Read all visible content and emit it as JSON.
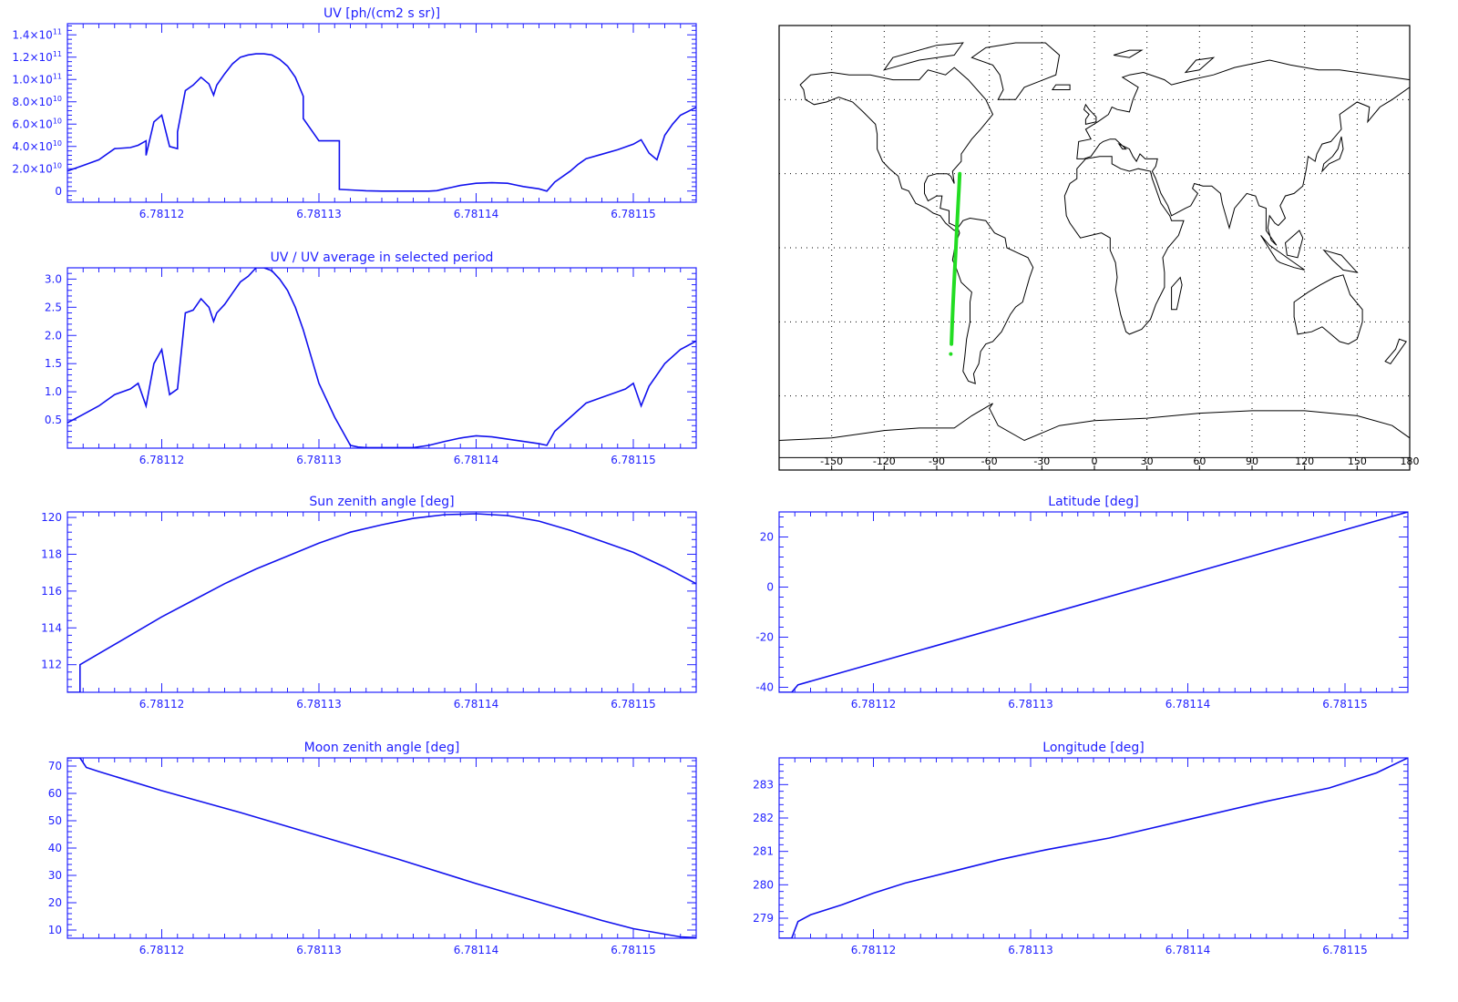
{
  "colors": {
    "axis": "#2222ff",
    "line": "#1111ee",
    "track": "#22dd22",
    "map": "#000000",
    "background": "#ffffff"
  },
  "chart_data": [
    {
      "id": "uv",
      "type": "line",
      "title": "UV [ph/(cm2 s sr)]",
      "xlim": [
        6.781114,
        6.781154
      ],
      "ylim": [
        -10000000000.0,
        150000000000.0
      ],
      "x_tick_labels": [
        "6.78112",
        "6.78113",
        "6.78114",
        "6.78115"
      ],
      "x_ticks": [
        6.78112,
        6.78113,
        6.78114,
        6.78115
      ],
      "y_ticks": [
        0,
        20000000000.0,
        40000000000.0,
        60000000000.0,
        80000000000.0,
        100000000000.0,
        120000000000.0,
        140000000000.0
      ],
      "y_tick_labels": [
        {
          "mant": "0",
          "exp": ""
        },
        {
          "mant": "2.0×10",
          "exp": "10"
        },
        {
          "mant": "4.0×10",
          "exp": "10"
        },
        {
          "mant": "6.0×10",
          "exp": "10"
        },
        {
          "mant": "8.0×10",
          "exp": "10"
        },
        {
          "mant": "1.0×10",
          "exp": "11"
        },
        {
          "mant": "1.2×10",
          "exp": "11"
        },
        {
          "mant": "1.4×10",
          "exp": "11"
        }
      ],
      "x": [
        6.781114,
        6.781115,
        6.781116,
        6.781117,
        6.781118,
        6.7811185,
        6.781119,
        6.781119,
        6.7811195,
        6.78112,
        6.7811205,
        6.781121,
        6.781121,
        6.7811215,
        6.781122,
        6.7811225,
        6.781123,
        6.7811233,
        6.7811235,
        6.781124,
        6.7811245,
        6.781125,
        6.7811255,
        6.781126,
        6.7811265,
        6.781127,
        6.7811275,
        6.781128,
        6.7811285,
        6.781129,
        6.781129,
        6.78113,
        6.7811305,
        6.7811313,
        6.7811313,
        6.781132,
        6.781133,
        6.781134,
        6.781135,
        6.781136,
        6.781137,
        6.7811375,
        6.781138,
        6.7811385,
        6.781139,
        6.78114,
        6.781141,
        6.781142,
        6.7811425,
        6.781143,
        6.7811435,
        6.781144,
        6.7811445,
        6.781145,
        6.781146,
        6.7811465,
        6.781147,
        6.781148,
        6.781149,
        6.78115,
        6.7811505,
        6.781151,
        6.7811515,
        6.781152,
        6.7811525,
        6.781153,
        6.781154
      ],
      "y": [
        18000000000.0,
        23000000000.0,
        28000000000.0,
        38000000000.0,
        39000000000.0,
        41000000000.0,
        45000000000.0,
        32000000000.0,
        62000000000.0,
        68000000000.0,
        40000000000.0,
        38000000000.0,
        53000000000.0,
        90000000000.0,
        95000000000.0,
        102000000000.0,
        96000000000.0,
        86000000000.0,
        95000000000.0,
        105000000000.0,
        114000000000.0,
        120000000000.0,
        122000000000.0,
        123000000000.0,
        123000000000.0,
        122000000000.0,
        118000000000.0,
        112000000000.0,
        102000000000.0,
        85000000000.0,
        65000000000.0,
        45000000000.0,
        45000000000.0,
        45000000000.0,
        1500000000.0,
        1000000000.0,
        300000000.0,
        0,
        0,
        0,
        0,
        400000000.0,
        2000000000.0,
        3500000000.0,
        5000000000.0,
        7000000000.0,
        7500000000.0,
        7000000000.0,
        5500000000.0,
        4000000000.0,
        3000000000.0,
        2000000000.0,
        0,
        8000000000.0,
        18000000000.0,
        24000000000.0,
        29000000000.0,
        33000000000.0,
        37000000000.0,
        42000000000.0,
        46000000000.0,
        34000000000.0,
        28000000000.0,
        50000000000.0,
        60000000000.0,
        68000000000.0,
        75000000000.0
      ]
    },
    {
      "id": "uvratio",
      "type": "line",
      "title": "UV / UV average in selected period",
      "xlim": [
        6.781114,
        6.781154
      ],
      "ylim": [
        0,
        3.2
      ],
      "x_tick_labels": [
        "6.78112",
        "6.78113",
        "6.78114",
        "6.78115"
      ],
      "x_ticks": [
        6.78112,
        6.78113,
        6.78114,
        6.78115
      ],
      "y_ticks": [
        0.5,
        1.0,
        1.5,
        2.0,
        2.5,
        3.0
      ],
      "y_tick_labels": [
        "0.5",
        "1.0",
        "1.5",
        "2.0",
        "2.5",
        "3.0"
      ],
      "x": [
        6.781114,
        6.781115,
        6.781116,
        6.781117,
        6.781118,
        6.7811185,
        6.781119,
        6.7811195,
        6.78112,
        6.7811205,
        6.781121,
        6.7811215,
        6.781122,
        6.7811225,
        6.781123,
        6.7811233,
        6.7811235,
        6.781124,
        6.7811245,
        6.781125,
        6.7811255,
        6.781126,
        6.7811265,
        6.781127,
        6.7811275,
        6.781128,
        6.7811285,
        6.781129,
        6.78113,
        6.781131,
        6.781132,
        6.7811325,
        6.781133,
        6.781134,
        6.781135,
        6.781136,
        6.781137,
        6.781138,
        6.781139,
        6.78114,
        6.781141,
        6.781142,
        6.781143,
        6.781144,
        6.7811445,
        6.781145,
        6.781146,
        6.781147,
        6.781148,
        6.781149,
        6.7811495,
        6.78115,
        6.7811505,
        6.781151,
        6.781152,
        6.781153,
        6.781154
      ],
      "y": [
        0.45,
        0.6,
        0.75,
        0.95,
        1.05,
        1.15,
        0.75,
        1.5,
        1.75,
        0.95,
        1.05,
        2.4,
        2.45,
        2.65,
        2.5,
        2.25,
        2.4,
        2.55,
        2.75,
        2.95,
        3.05,
        3.2,
        3.2,
        3.15,
        3.0,
        2.8,
        2.5,
        2.1,
        1.15,
        0.55,
        0.05,
        0.02,
        0.01,
        0.01,
        0.01,
        0.01,
        0.05,
        0.12,
        0.18,
        0.22,
        0.2,
        0.16,
        0.12,
        0.08,
        0.05,
        0.3,
        0.55,
        0.8,
        0.9,
        1.0,
        1.05,
        1.15,
        0.75,
        1.1,
        1.5,
        1.75,
        1.9
      ]
    },
    {
      "id": "sun",
      "type": "line",
      "title": "Sun zenith angle [deg]",
      "xlim": [
        6.781114,
        6.781154
      ],
      "ylim": [
        110.5,
        120.3
      ],
      "x_tick_labels": [
        "6.78112",
        "6.78113",
        "6.78114",
        "6.78115"
      ],
      "x_ticks": [
        6.78112,
        6.78113,
        6.78114,
        6.78115
      ],
      "y_ticks": [
        112,
        114,
        116,
        118,
        120
      ],
      "y_tick_labels": [
        "112",
        "114",
        "116",
        "118",
        "120"
      ],
      "x": [
        6.781114,
        6.7811148,
        6.7811148,
        6.781116,
        6.781118,
        6.78112,
        6.781122,
        6.781124,
        6.781126,
        6.781128,
        6.78113,
        6.781132,
        6.781134,
        6.781136,
        6.781138,
        6.78114,
        6.781142,
        6.781144,
        6.781146,
        6.781148,
        6.78115,
        6.781152,
        6.781154
      ],
      "y": [
        110.5,
        110.5,
        112.0,
        112.6,
        113.6,
        114.6,
        115.5,
        116.4,
        117.2,
        117.9,
        118.6,
        119.2,
        119.6,
        119.95,
        120.15,
        120.2,
        120.1,
        119.8,
        119.3,
        118.7,
        118.1,
        117.3,
        116.4
      ]
    },
    {
      "id": "lat",
      "type": "line",
      "title": "Latitude [deg]",
      "xlim": [
        6.781114,
        6.781154
      ],
      "ylim": [
        -42,
        30
      ],
      "x_tick_labels": [
        "6.78112",
        "6.78113",
        "6.78114",
        "6.78115"
      ],
      "x_ticks": [
        6.78112,
        6.78113,
        6.78114,
        6.78115
      ],
      "y_ticks": [
        -40,
        -20,
        0,
        20
      ],
      "y_tick_labels": [
        "-40",
        "-20",
        "0",
        "20"
      ],
      "x": [
        6.781114,
        6.7811148,
        6.7811152,
        6.781154
      ],
      "y": [
        -42,
        -42,
        -39,
        30
      ]
    },
    {
      "id": "moon",
      "type": "line",
      "title": "Moon zenith angle [deg]",
      "xlim": [
        6.781114,
        6.781154
      ],
      "ylim": [
        7,
        73
      ],
      "x_tick_labels": [
        "6.78112",
        "6.78113",
        "6.78114",
        "6.78115"
      ],
      "x_ticks": [
        6.78112,
        6.78113,
        6.78114,
        6.78115
      ],
      "y_ticks": [
        10,
        20,
        30,
        40,
        50,
        60,
        70
      ],
      "y_tick_labels": [
        "10",
        "20",
        "30",
        "40",
        "50",
        "60",
        "70"
      ],
      "x": [
        6.781114,
        6.7811148,
        6.7811152,
        6.781116,
        6.78112,
        6.781125,
        6.78113,
        6.781135,
        6.78114,
        6.781145,
        6.781148,
        6.78115,
        6.781152,
        6.781153,
        6.781154
      ],
      "y": [
        73,
        73,
        69.5,
        68,
        61,
        53,
        44.5,
        36,
        27,
        18.5,
        13.5,
        10.5,
        8.5,
        7.5,
        7.2
      ]
    },
    {
      "id": "lon",
      "type": "line",
      "title": "Longitude [deg]",
      "xlim": [
        6.781114,
        6.781154
      ],
      "ylim": [
        278.4,
        283.8
      ],
      "x_tick_labels": [
        "6.78112",
        "6.78113",
        "6.78114",
        "6.78115"
      ],
      "x_ticks": [
        6.78112,
        6.78113,
        6.78114,
        6.78115
      ],
      "y_ticks": [
        279,
        280,
        281,
        282,
        283
      ],
      "y_tick_labels": [
        "279",
        "280",
        "281",
        "282",
        "283"
      ],
      "x": [
        6.781114,
        6.7811148,
        6.7811152,
        6.781116,
        6.781118,
        6.78112,
        6.781122,
        6.781125,
        6.781128,
        6.781131,
        6.781135,
        6.78114,
        6.781145,
        6.781149,
        6.781152,
        6.781154
      ],
      "y": [
        278.4,
        278.4,
        278.9,
        279.1,
        279.4,
        279.75,
        280.05,
        280.4,
        280.75,
        281.05,
        281.4,
        281.95,
        282.5,
        282.9,
        283.35,
        283.8
      ]
    }
  ],
  "map": {
    "lon_range": [
      -180,
      180
    ],
    "lat_range": [
      -90,
      90
    ],
    "x_tick_labels": [
      "-150",
      "-120",
      "-90",
      "-60",
      "-30",
      "0",
      "30",
      "60",
      "90",
      "120",
      "150",
      "180"
    ],
    "lon_ticks": [
      -150,
      -120,
      -90,
      -60,
      -30,
      0,
      30,
      60,
      90,
      120,
      150,
      180
    ],
    "lat_grid": [
      -60,
      -30,
      0,
      30,
      60
    ],
    "track": {
      "lon": [
        -81.6,
        -81.2,
        -80.8,
        -80.3,
        -79.8,
        -79.3,
        -78.8,
        -78.3,
        -77.8,
        -77.3,
        -76.9
      ],
      "lat": [
        -39,
        -31,
        -24,
        -17,
        -10,
        -3,
        4,
        11,
        18,
        24,
        30
      ]
    },
    "track_marker": {
      "lon": [
        -82
      ],
      "lat": [
        -43
      ]
    }
  }
}
